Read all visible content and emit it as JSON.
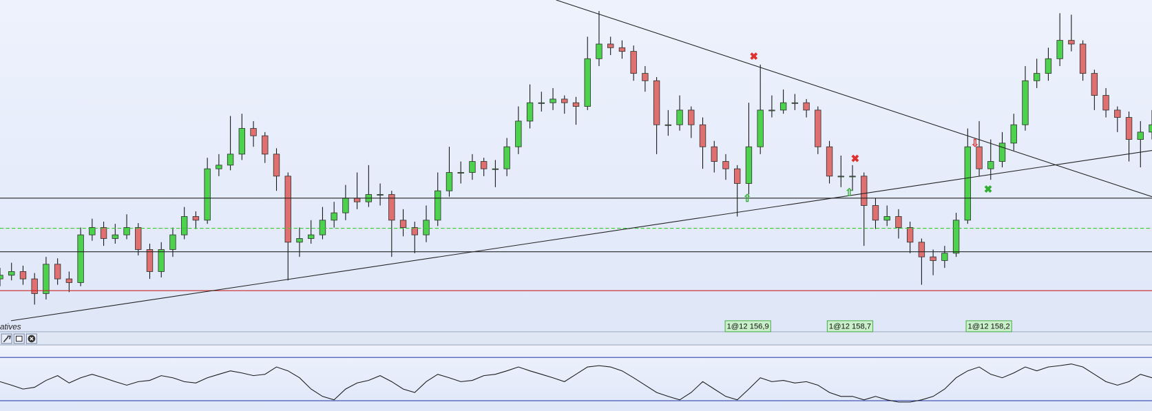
{
  "chart_data": {
    "type": "candlestick",
    "open": [
      70,
      75,
      80,
      70,
      50,
      90,
      70,
      65,
      130,
      140,
      125,
      130,
      140,
      110,
      80,
      110,
      130,
      155,
      150,
      220,
      225,
      240,
      275,
      265,
      240,
      210,
      120,
      125,
      130,
      150,
      160,
      180,
      175,
      185,
      185,
      150,
      140,
      130,
      150,
      190,
      215,
      215,
      230,
      220,
      220,
      250,
      285,
      310,
      310,
      315,
      310,
      305,
      370,
      390,
      385,
      380,
      350,
      340,
      280,
      280,
      300,
      280,
      250,
      230,
      220,
      200,
      250,
      300,
      300,
      310,
      310,
      300,
      250,
      210,
      210,
      210,
      170,
      150,
      155,
      140,
      120,
      100,
      95,
      105,
      150,
      250,
      220,
      230,
      255,
      280,
      340,
      350,
      370,
      395,
      390,
      350,
      320,
      300,
      290,
      260,
      270
    ],
    "high": [
      85,
      92,
      88,
      78,
      100,
      98,
      80,
      140,
      152,
      148,
      145,
      158,
      146,
      118,
      120,
      140,
      168,
      162,
      235,
      240,
      292,
      295,
      285,
      270,
      248,
      215,
      140,
      150,
      168,
      175,
      198,
      215,
      225,
      200,
      190,
      165,
      148,
      170,
      215,
      250,
      230,
      240,
      235,
      232,
      262,
      305,
      335,
      325,
      330,
      320,
      318,
      400,
      435,
      400,
      395,
      388,
      360,
      345,
      300,
      320,
      305,
      290,
      258,
      240,
      225,
      310,
      362,
      320,
      328,
      322,
      315,
      305,
      258,
      238,
      225,
      215,
      180,
      170,
      165,
      148,
      125,
      110,
      115,
      160,
      275,
      285,
      260,
      270,
      295,
      360,
      370,
      385,
      432,
      430,
      395,
      355,
      330,
      305,
      298,
      285,
      300
    ],
    "low": [
      60,
      68,
      62,
      35,
      42,
      62,
      52,
      60,
      122,
      115,
      118,
      124,
      102,
      70,
      72,
      100,
      124,
      138,
      145,
      210,
      218,
      232,
      250,
      228,
      190,
      68,
      100,
      118,
      124,
      140,
      150,
      165,
      168,
      170,
      100,
      128,
      105,
      120,
      142,
      182,
      200,
      205,
      210,
      195,
      210,
      240,
      275,
      298,
      300,
      295,
      280,
      300,
      360,
      375,
      370,
      340,
      325,
      240,
      265,
      272,
      262,
      220,
      215,
      205,
      155,
      185,
      240,
      290,
      295,
      300,
      290,
      240,
      200,
      195,
      190,
      115,
      138,
      142,
      125,
      105,
      62,
      75,
      85,
      100,
      145,
      210,
      205,
      222,
      245,
      272,
      330,
      340,
      360,
      380,
      340,
      300,
      290,
      270,
      230,
      222,
      260
    ],
    "close": [
      75,
      80,
      70,
      50,
      90,
      70,
      65,
      130,
      140,
      125,
      130,
      140,
      110,
      80,
      110,
      130,
      155,
      150,
      220,
      225,
      240,
      275,
      265,
      240,
      210,
      120,
      125,
      130,
      150,
      160,
      180,
      175,
      185,
      185,
      150,
      140,
      130,
      150,
      190,
      215,
      215,
      230,
      220,
      220,
      250,
      285,
      310,
      310,
      315,
      310,
      305,
      370,
      390,
      385,
      380,
      350,
      340,
      280,
      280,
      300,
      280,
      250,
      230,
      220,
      200,
      250,
      300,
      300,
      310,
      310,
      300,
      250,
      210,
      210,
      210,
      170,
      150,
      155,
      140,
      120,
      100,
      95,
      105,
      150,
      250,
      220,
      230,
      255,
      280,
      340,
      350,
      370,
      395,
      390,
      350,
      320,
      300,
      290,
      260,
      270,
      280
    ],
    "ylim": [
      0,
      450
    ],
    "up_color": "#4cd24c",
    "down_color": "#e07070",
    "oscillator": {
      "values": [
        44,
        36,
        27,
        31,
        47,
        58,
        41,
        53,
        61,
        53,
        44,
        36,
        44,
        47,
        58,
        53,
        44,
        41,
        53,
        61,
        69,
        64,
        58,
        61,
        78,
        69,
        53,
        27,
        10,
        2,
        27,
        41,
        47,
        58,
        44,
        27,
        19,
        44,
        61,
        53,
        44,
        47,
        58,
        61,
        69,
        78,
        69,
        61,
        53,
        44,
        61,
        78,
        81,
        78,
        69,
        53,
        36,
        19,
        10,
        2,
        19,
        44,
        27,
        10,
        2,
        27,
        53,
        44,
        47,
        41,
        44,
        36,
        19,
        10,
        10,
        2,
        10,
        2,
        -3,
        -3,
        2,
        10,
        27,
        53,
        69,
        78,
        61,
        53,
        64,
        78,
        69,
        78,
        81,
        85,
        78,
        61,
        44,
        36,
        44,
        61,
        53
      ],
      "ylim": [
        0,
        100
      ],
      "color": "#1a1a1a"
    }
  },
  "ui": {
    "pane_label": "atives",
    "trade_labels": [
      "1@12 156,9",
      "1@12 158,7",
      "1@12 158,2"
    ]
  }
}
